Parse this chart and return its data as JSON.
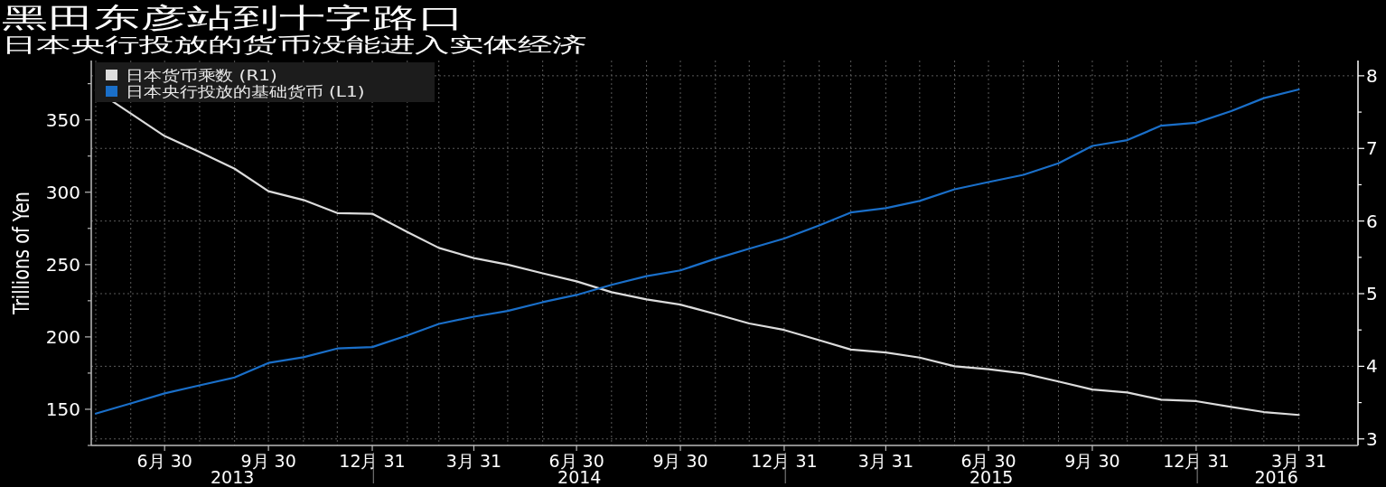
{
  "chart_data": {
    "type": "line",
    "title": "黑田东彦站到十字路口",
    "subtitle": "日本央行投放的货币没能进入实体经济",
    "ylabel": "Trillions of Yen",
    "x": [
      "2013-04-30",
      "2013-05-31",
      "2013-06-30",
      "2013-07-31",
      "2013-08-31",
      "2013-09-30",
      "2013-10-31",
      "2013-11-30",
      "2013-12-31",
      "2014-01-31",
      "2014-02-28",
      "2014-03-31",
      "2014-04-30",
      "2014-05-31",
      "2014-06-30",
      "2014-07-31",
      "2014-08-31",
      "2014-09-30",
      "2014-10-31",
      "2014-11-30",
      "2014-12-31",
      "2015-01-31",
      "2015-02-28",
      "2015-03-31",
      "2015-04-30",
      "2015-05-31",
      "2015-06-30",
      "2015-07-31",
      "2015-08-31",
      "2015-09-30",
      "2015-10-31",
      "2015-11-30",
      "2015-12-31",
      "2016-01-31",
      "2016-02-29",
      "2016-03-31"
    ],
    "series": [
      {
        "name": "日本货币乘数 (R1)",
        "color": "#dcdcdc",
        "axis": "y2",
        "values": [
          7.8,
          7.48,
          7.17,
          6.95,
          6.72,
          6.41,
          6.29,
          6.11,
          6.1,
          5.85,
          5.63,
          5.49,
          5.4,
          5.28,
          5.17,
          5.02,
          4.92,
          4.85,
          4.72,
          4.59,
          4.5,
          4.36,
          4.23,
          4.19,
          4.12,
          4.0,
          3.96,
          3.9,
          3.79,
          3.68,
          3.64,
          3.54,
          3.52,
          3.44,
          3.37,
          3.33
        ]
      },
      {
        "name": "日本央行投放的基础货币 (L1)",
        "color": "#1a6fc9",
        "axis": "y",
        "values": [
          147,
          154,
          161,
          166.5,
          172,
          182,
          186,
          192,
          193,
          201,
          209,
          214,
          218,
          224,
          229,
          236,
          242,
          246,
          254,
          261,
          268,
          277,
          286,
          289,
          294,
          302,
          307,
          312,
          320,
          332,
          336,
          346,
          348,
          356,
          365,
          371
        ]
      }
    ],
    "xlim": [
      "2013-04-26",
      "2016-05-20"
    ],
    "xticks": [
      {
        "value": "2013-06-30",
        "label": "6月 30"
      },
      {
        "value": "2013-09-30",
        "label": "9月 30"
      },
      {
        "value": "2013-12-31",
        "label": "12月 31"
      },
      {
        "value": "2014-03-31",
        "label": "3月 31"
      },
      {
        "value": "2014-06-30",
        "label": "6月 30"
      },
      {
        "value": "2014-09-30",
        "label": "9月 30"
      },
      {
        "value": "2014-12-31",
        "label": "12月 31"
      },
      {
        "value": "2015-03-31",
        "label": "3月 31"
      },
      {
        "value": "2015-06-30",
        "label": "6月 30"
      },
      {
        "value": "2015-09-30",
        "label": "9月 30"
      },
      {
        "value": "2015-12-31",
        "label": "12月 31"
      },
      {
        "value": "2016-03-31",
        "label": "3月 31"
      }
    ],
    "ylim": [
      125,
      391
    ],
    "yticks": [
      {
        "value": 125,
        "label": null
      },
      150,
      {
        "value": 175,
        "label": null
      },
      200,
      {
        "value": 225,
        "label": null
      },
      250,
      {
        "value": 275,
        "label": null
      },
      300,
      {
        "value": 325,
        "label": null
      },
      350,
      {
        "value": 375,
        "label": null
      }
    ],
    "y2lim": [
      2.91,
      8.21
    ],
    "y2ticks": [
      3,
      {
        "value": 3.5,
        "label": null
      },
      4,
      {
        "value": 4.5,
        "label": null
      },
      5,
      {
        "value": 5.5,
        "label": null
      },
      6,
      {
        "value": 6.5,
        "label": null
      },
      7,
      {
        "value": 7.5,
        "label": null
      },
      8
    ],
    "annotations": [
      "2013",
      "2014",
      "2015",
      "2016"
    ],
    "grid": true,
    "legend": "top left",
    "line_style": "solid",
    "marker": "none"
  }
}
